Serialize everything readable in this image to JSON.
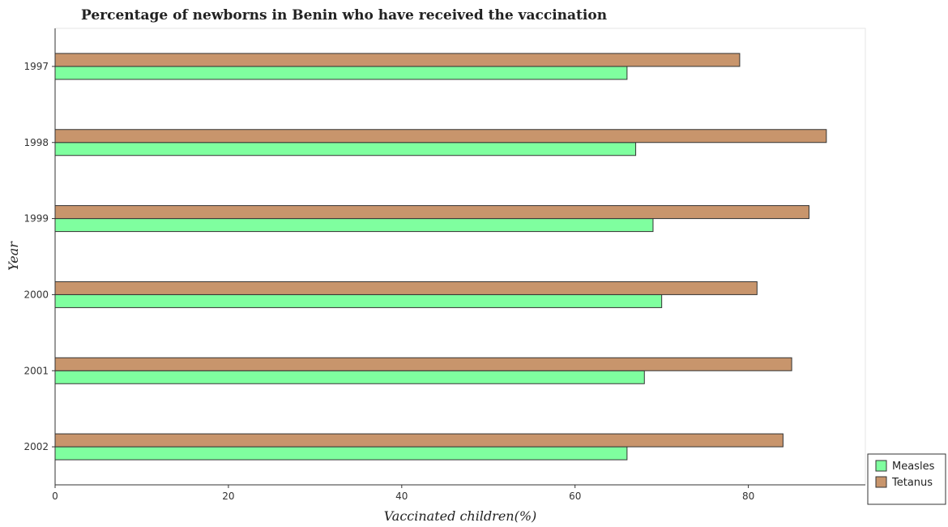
{
  "chart_data": {
    "type": "bar",
    "orientation": "horizontal",
    "title": "Percentage of newborns in Benin who have received the vaccination",
    "xlabel": "Vaccinated children(%)",
    "ylabel": "Year",
    "categories": [
      "1997",
      "1998",
      "1999",
      "2000",
      "2001",
      "2002"
    ],
    "series": [
      {
        "name": "Measles",
        "color": "#7fff9f",
        "values": [
          66,
          67,
          69,
          70,
          68,
          66
        ]
      },
      {
        "name": "Tetanus",
        "color": "#c8956c",
        "values": [
          79,
          89,
          87,
          81,
          85,
          84
        ]
      }
    ],
    "xlim": [
      0,
      93.5
    ],
    "xticks": [
      0,
      20,
      40,
      60,
      80
    ],
    "grid": false,
    "legend_position": "bottom-right"
  }
}
